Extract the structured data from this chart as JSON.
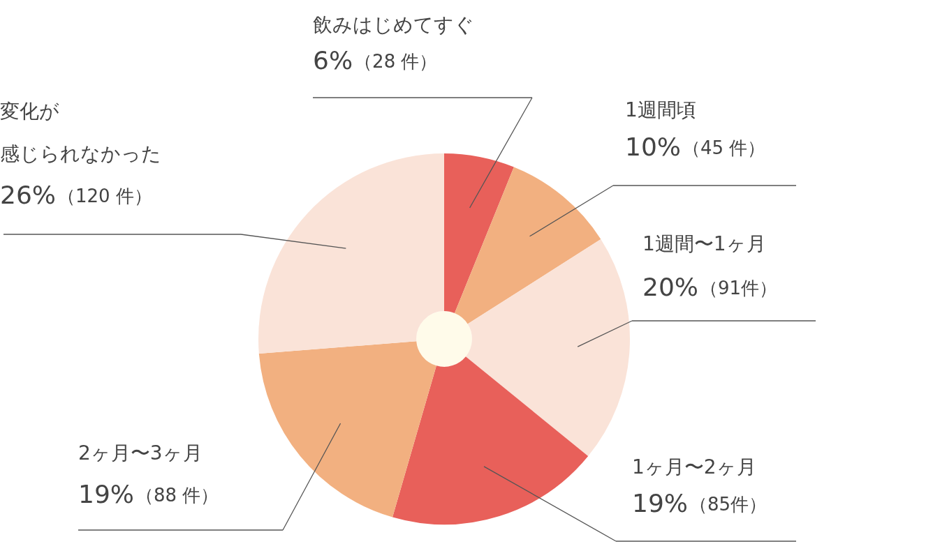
{
  "chart_data": {
    "type": "donut",
    "categories": [
      "飲みはじめてすぐ",
      "1週間頃",
      "1週間〜1ヶ月",
      "1ヶ月〜2ヶ月",
      "2ヶ月〜3ヶ月",
      "変化が感じられなかった"
    ],
    "values": [
      28,
      45,
      91,
      85,
      88,
      120
    ],
    "colors": [
      "#e8605a",
      "#f2b080",
      "#fae3d8",
      "#e8605a",
      "#f2b080",
      "#fae3d8"
    ],
    "value_labels": [
      "6%（28 件）",
      "10%（45 件）",
      "20%（91件）",
      "19%（85件）",
      "19%（88 件）",
      "26%（120 件）"
    ],
    "legend": false
  }
}
